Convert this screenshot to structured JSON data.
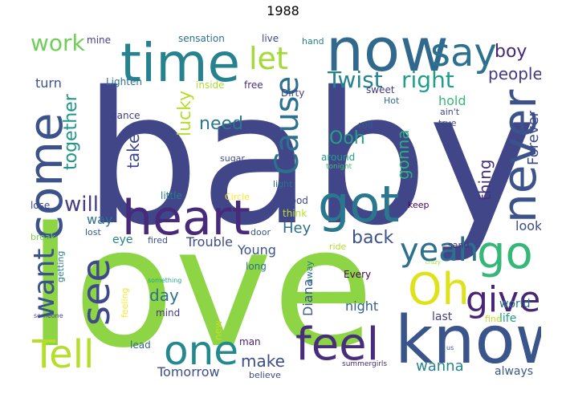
{
  "title": "1988",
  "words": [
    {
      "text": "baby",
      "color": "#404688"
    },
    {
      "text": "love",
      "color": "#8dd544"
    },
    {
      "text": "know",
      "color": "#3a548c"
    },
    {
      "text": "now",
      "color": "#31688e"
    },
    {
      "text": "time",
      "color": "#26828e"
    },
    {
      "text": "heart",
      "color": "#472a7a"
    },
    {
      "text": "got",
      "color": "#2a788e"
    },
    {
      "text": "come",
      "color": "#3b528b"
    },
    {
      "text": "never",
      "color": "#3b528b"
    },
    {
      "text": "go",
      "color": "#35b779"
    },
    {
      "text": "say",
      "color": "#2c718e"
    },
    {
      "text": "Oh",
      "color": "#dde318"
    },
    {
      "text": "feel",
      "color": "#472d7b"
    },
    {
      "text": "one",
      "color": "#23898e"
    },
    {
      "text": "Tell",
      "color": "#b5de2b"
    },
    {
      "text": "see",
      "color": "#3e4989"
    },
    {
      "text": "give",
      "color": "#482576"
    },
    {
      "text": "yeah",
      "color": "#2d708e"
    },
    {
      "text": "Cause",
      "color": "#2c728e"
    },
    {
      "text": "let",
      "color": "#a2da37"
    },
    {
      "text": "want",
      "color": "#3b528b"
    },
    {
      "text": "Twist",
      "color": "#26828e"
    },
    {
      "text": "right",
      "color": "#1f9e89"
    },
    {
      "text": "work",
      "color": "#6ece58"
    },
    {
      "text": "boy",
      "color": "#482677"
    },
    {
      "text": "people",
      "color": "#453781"
    },
    {
      "text": "lucky",
      "color": "#b5de2b"
    },
    {
      "text": "together",
      "color": "#1f968b"
    },
    {
      "text": "need",
      "color": "#2a788e"
    },
    {
      "text": "take",
      "color": "#3f4788"
    },
    {
      "text": "Ooh",
      "color": "#20a386"
    },
    {
      "text": "gonna",
      "color": "#2ab07f"
    },
    {
      "text": "will",
      "color": "#433e85"
    },
    {
      "text": "thing",
      "color": "#46317e"
    },
    {
      "text": "Forever",
      "color": "#3e4a89"
    },
    {
      "text": "back",
      "color": "#3b518b"
    },
    {
      "text": "Hey",
      "color": "#2e6e8e"
    },
    {
      "text": "make",
      "color": "#3d4d8a"
    },
    {
      "text": "day",
      "color": "#2d708e"
    },
    {
      "text": "wanna",
      "color": "#25858e"
    },
    {
      "text": "night",
      "color": "#34618d"
    },
    {
      "text": "Tomorrow",
      "color": "#3d4e8a"
    },
    {
      "text": "Trouble",
      "color": "#3e4c8a"
    },
    {
      "text": "Young",
      "color": "#3b528b"
    },
    {
      "text": "Diana",
      "color": "#38598c"
    },
    {
      "text": "look",
      "color": "#3e4a89"
    },
    {
      "text": "always",
      "color": "#38598c"
    },
    {
      "text": "life",
      "color": "#1fa088"
    },
    {
      "text": "last",
      "color": "#433d84"
    },
    {
      "text": "world",
      "color": "#2a768e"
    },
    {
      "text": "hold",
      "color": "#37b878"
    },
    {
      "text": "turn",
      "color": "#3b528b"
    },
    {
      "text": "mine",
      "color": "#424186"
    },
    {
      "text": "Lighten",
      "color": "#2c718e"
    },
    {
      "text": "sensation",
      "color": "#2c718e"
    },
    {
      "text": "live",
      "color": "#3e4989"
    },
    {
      "text": "hand",
      "color": "#26828e"
    },
    {
      "text": "inside",
      "color": "#addc30"
    },
    {
      "text": "free",
      "color": "#472f7d"
    },
    {
      "text": "Dirty",
      "color": "#423f85"
    },
    {
      "text": "sweet",
      "color": "#453781"
    },
    {
      "text": "Hot",
      "color": "#2d708e"
    },
    {
      "text": "roll",
      "color": "#38598c"
    },
    {
      "text": "ain't",
      "color": "#3f4788"
    },
    {
      "text": "true",
      "color": "#3f4788"
    },
    {
      "text": "dance",
      "color": "#433e85"
    },
    {
      "text": "sugar",
      "color": "#3e4989"
    },
    {
      "text": "around",
      "color": "#1f9e89"
    },
    {
      "text": "tonight",
      "color": "#44bf70"
    },
    {
      "text": "little",
      "color": "#287c8e"
    },
    {
      "text": "Circle",
      "color": "#fde725"
    },
    {
      "text": "light",
      "color": "#2d708e"
    },
    {
      "text": "good",
      "color": "#3e4989"
    },
    {
      "text": "keep",
      "color": "#440154"
    },
    {
      "text": "way",
      "color": "#2c728e"
    },
    {
      "text": "lose",
      "color": "#3e4989"
    },
    {
      "text": "think",
      "color": "#bddf26"
    },
    {
      "text": "break",
      "color": "#7ad151"
    },
    {
      "text": "lost",
      "color": "#38588c"
    },
    {
      "text": "eye",
      "color": "#26828e"
    },
    {
      "text": "fired",
      "color": "#3b518b"
    },
    {
      "text": "door",
      "color": "#3b528b"
    },
    {
      "text": "ride",
      "color": "#b5de2b"
    },
    {
      "text": "sand",
      "color": "#46307e"
    },
    {
      "text": "getting",
      "color": "#26828e"
    },
    {
      "text": "long",
      "color": "#2e6e8e"
    },
    {
      "text": "crazy",
      "color": "#a5db36"
    },
    {
      "text": "away",
      "color": "#2a768e"
    },
    {
      "text": "Every",
      "color": "#440154"
    },
    {
      "text": "something",
      "color": "#22a785"
    },
    {
      "text": "feeling",
      "color": "#fde725"
    },
    {
      "text": "mind",
      "color": "#443983"
    },
    {
      "text": "someone",
      "color": "#3e4989"
    },
    {
      "text": "fine",
      "color": "#bddf26"
    },
    {
      "text": "new",
      "color": "#c2df23"
    },
    {
      "text": "lead",
      "color": "#31688e"
    },
    {
      "text": "man",
      "color": "#481f70"
    },
    {
      "text": "us",
      "color": "#3b528b"
    },
    {
      "text": "summergirls",
      "color": "#472a7a"
    },
    {
      "text": "believe",
      "color": "#3e4989"
    }
  ]
}
